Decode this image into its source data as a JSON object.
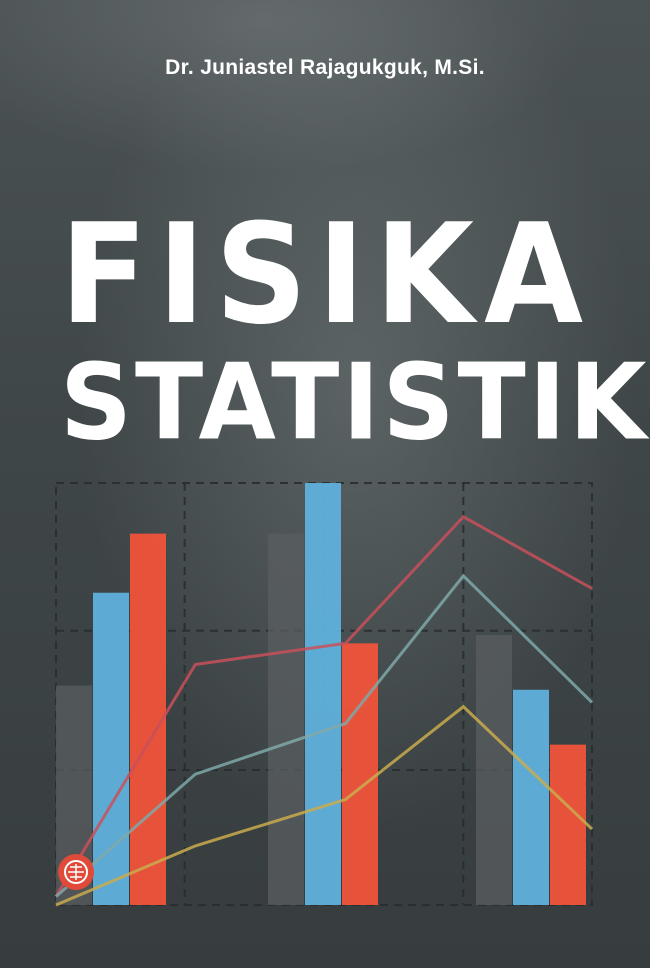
{
  "cover": {
    "author": "Dr. Juniastel Rajagukguk, M.Si.",
    "title_line1": "FISIKA",
    "title_line2": "STATISTIK"
  },
  "colors": {
    "background": "#3d4345",
    "text": "#ffffff",
    "bar_gray": "#5a5e60",
    "bar_blue": "#5fb1dc",
    "bar_red": "#f0533a",
    "line_red": "#c8505a",
    "line_teal": "#7fa8a8",
    "line_yellow": "#c9ab4e"
  },
  "chart_data": {
    "type": "bar",
    "title": "",
    "xlabel": "",
    "ylabel": "",
    "ylim": [
      0,
      100
    ],
    "groups": 3,
    "bars": [
      {
        "group": 0,
        "series": "gray",
        "value": 52
      },
      {
        "group": 0,
        "series": "blue",
        "value": 74
      },
      {
        "group": 0,
        "series": "red",
        "value": 88
      },
      {
        "group": 1,
        "series": "gray",
        "value": 88
      },
      {
        "group": 1,
        "series": "blue",
        "value": 100
      },
      {
        "group": 1,
        "series": "red",
        "value": 62
      },
      {
        "group": 2,
        "series": "gray",
        "value": 64
      },
      {
        "group": 2,
        "series": "blue",
        "value": 51
      },
      {
        "group": 2,
        "series": "red",
        "value": 38
      }
    ],
    "lines": [
      {
        "name": "red",
        "x": [
          0,
          1.3,
          2.7,
          3.8,
          5
        ],
        "values": [
          2,
          57,
          62,
          92,
          75
        ]
      },
      {
        "name": "teal",
        "x": [
          0,
          1.3,
          2.7,
          3.8,
          5
        ],
        "values": [
          2,
          31,
          43,
          78,
          48
        ]
      },
      {
        "name": "yellow",
        "x": [
          0,
          1.3,
          2.7,
          3.8,
          5
        ],
        "values": [
          0,
          14,
          25,
          47,
          18
        ]
      }
    ]
  }
}
